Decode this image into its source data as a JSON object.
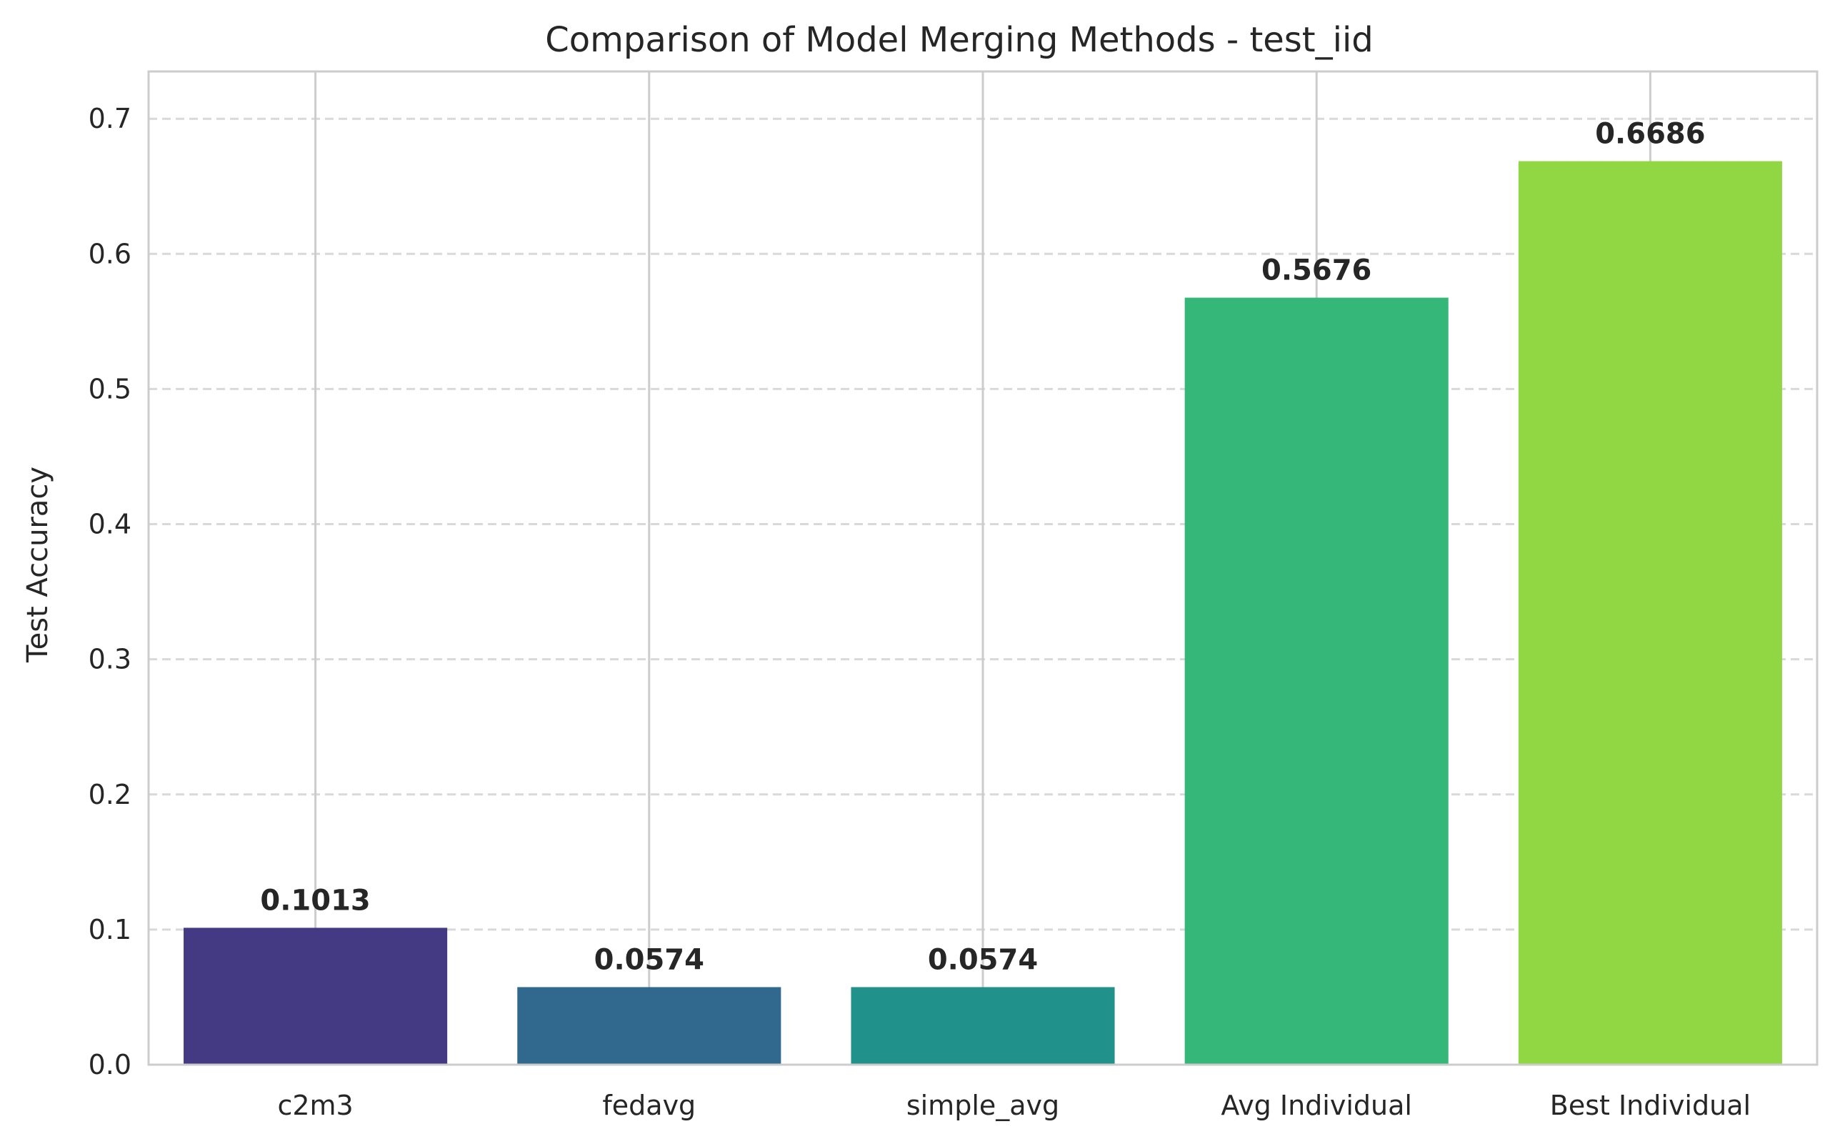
{
  "chart_data": {
    "type": "bar",
    "title": "Comparison of Model Merging Methods - test_iid",
    "xlabel": "",
    "ylabel": "Test Accuracy",
    "categories": [
      "c2m3",
      "fedavg",
      "simple_avg",
      "Avg Individual",
      "Best Individual"
    ],
    "values": [
      0.1013,
      0.0574,
      0.0574,
      0.5676,
      0.6686
    ],
    "value_labels": [
      "0.1013",
      "0.0574",
      "0.0574",
      "0.5676",
      "0.6686"
    ],
    "colors": [
      "#443983",
      "#31688e",
      "#21918c",
      "#35b779",
      "#90d743"
    ],
    "ylim": [
      0,
      0.735
    ],
    "yticks": [
      0.0,
      0.1,
      0.2,
      0.3,
      0.4,
      0.5,
      0.6,
      0.7
    ],
    "ytick_labels": [
      "0.0",
      "0.1",
      "0.2",
      "0.3",
      "0.4",
      "0.5",
      "0.6",
      "0.7"
    ],
    "grid": {
      "y": "dashed",
      "x": "solid"
    },
    "frame_color": "#cccccc",
    "grid_color": "#d9d9d9"
  }
}
